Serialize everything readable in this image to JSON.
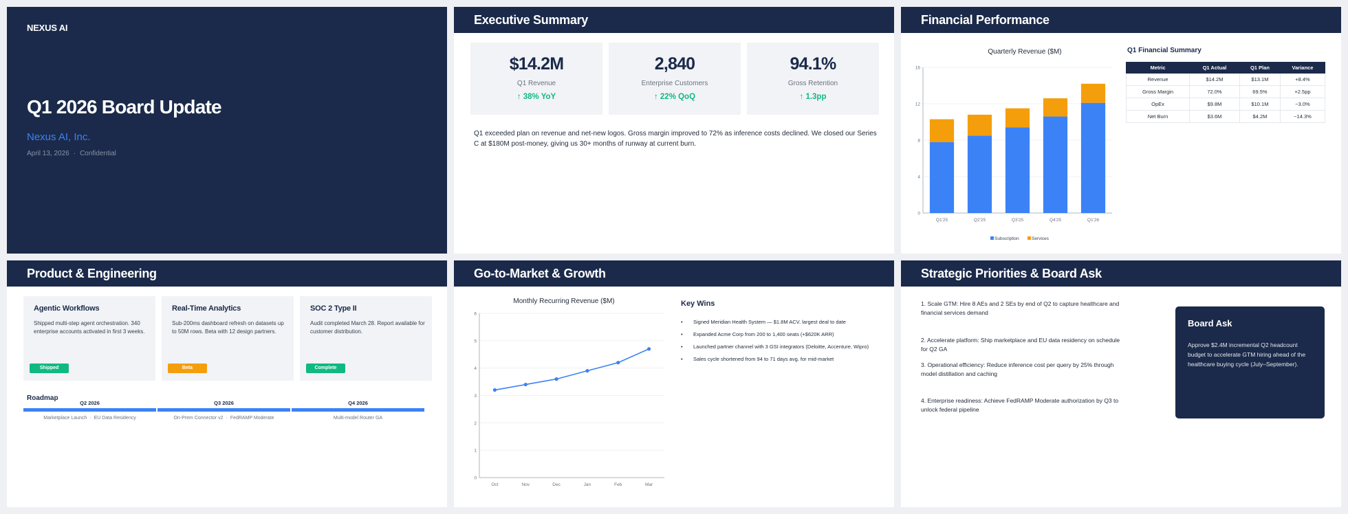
{
  "title_slide": {
    "brand": "NEXUS AI",
    "title": "Q1 2026 Board Update",
    "company": "Nexus AI, Inc.",
    "date": "April 13, 2026",
    "confidential": "Confidential"
  },
  "executive_summary": {
    "heading": "Executive Summary",
    "kpis": [
      {
        "value": "$14.2M",
        "label": "Q1 Revenue",
        "delta": "↑ 38% YoY"
      },
      {
        "value": "2,840",
        "label": "Enterprise Customers",
        "delta": "↑ 22% QoQ"
      },
      {
        "value": "94.1%",
        "label": "Gross Retention",
        "delta": "↑ 1.3pp"
      }
    ],
    "summary": "Q1 exceeded plan on revenue and net-new logos. Gross margin improved to 72% as inference costs declined. We closed our Series C at $180M post-money, giving us 30+ months of runway at current burn."
  },
  "financial": {
    "heading": "Financial Performance",
    "table_title": "Q1 Financial Summary",
    "table_headers": [
      "Metric",
      "Q1 Actual",
      "Q1 Plan",
      "Variance"
    ],
    "table_rows": [
      [
        "Revenue",
        "$14.2M",
        "$13.1M",
        "+8.4%"
      ],
      [
        "Gross Margin",
        "72.0%",
        "69.5%",
        "+2.5pp"
      ],
      [
        "OpEx",
        "$9.8M",
        "$10.1M",
        "−3.0%"
      ],
      [
        "Net Burn",
        "$3.6M",
        "$4.2M",
        "−14.3%"
      ]
    ]
  },
  "product": {
    "heading": "Product & Engineering",
    "cards": [
      {
        "title": "Agentic Workflows",
        "desc": "Shipped multi-step agent orchestration. 340 enterprise accounts activated in first 3 weeks.",
        "status": "Shipped",
        "color": "#10b981"
      },
      {
        "title": "Real-Time Analytics",
        "desc": "Sub-200ms dashboard refresh on datasets up to 50M rows. Beta with 12 design partners.",
        "status": "Beta",
        "color": "#f59e0b"
      },
      {
        "title": "SOC 2 Type II",
        "desc": "Audit completed March 28. Report available for customer distribution.",
        "status": "Complete",
        "color": "#10b981"
      }
    ],
    "roadmap_title": "Roadmap",
    "roadmap": [
      {
        "quarter": "Q2 2026",
        "items": [
          "Marketplace Launch",
          "EU Data Residency"
        ]
      },
      {
        "quarter": "Q3 2026",
        "items": [
          "On-Prem Connector v2",
          "FedRAMP Moderate"
        ]
      },
      {
        "quarter": "Q4 2026",
        "items": [
          "Multi-model Router GA"
        ]
      }
    ]
  },
  "gtm": {
    "heading": "Go-to-Market & Growth",
    "wins_title": "Key Wins",
    "wins": [
      "Signed Meridian Health System — $1.8M ACV, largest deal to date",
      "Expanded Acme Corp from 200 to 1,400 seats (+$620K ARR)",
      "Launched partner channel with 3 GSI integrators (Deloitte, Accenture, Wipro)",
      "Sales cycle shortened from 94 to 71 days avg. for mid-market"
    ]
  },
  "strategy": {
    "heading": "Strategic Priorities & Board Ask",
    "priorities": [
      "1.  Scale GTM: Hire 8 AEs and 2 SEs by end of Q2 to capture healthcare and financial services demand",
      "2.  Accelerate platform: Ship marketplace and EU data residency on schedule for Q2 GA",
      "3.  Operational efficiency: Reduce inference cost per query by 25% through model distillation and caching",
      "4.  Enterprise readiness: Achieve FedRAMP Moderate authorization by Q3 to unlock federal pipeline"
    ],
    "ask_title": "Board Ask",
    "ask_text": "Approve $2.4M incremental Q2 headcount budget to accelerate GTM hiring ahead of the healthcare buying cycle (July–September)."
  },
  "colors": {
    "navy": "#1b2a4a",
    "blue": "#3b82f6",
    "orange": "#f59e0b",
    "green": "#10b981"
  },
  "chart_data": [
    {
      "type": "bar",
      "stacked": true,
      "title": "Quarterly Revenue ($M)",
      "categories": [
        "Q1'25",
        "Q2'25",
        "Q3'25",
        "Q4'25",
        "Q1'26"
      ],
      "series": [
        {
          "name": "Subscription",
          "color": "#3b82f6",
          "values": [
            7.8,
            8.5,
            9.4,
            10.6,
            12.1
          ]
        },
        {
          "name": "Services",
          "color": "#f59e0b",
          "values": [
            2.5,
            2.3,
            2.1,
            2.0,
            2.1
          ]
        }
      ],
      "ylim": [
        0,
        16
      ],
      "yticks": [
        0,
        4,
        8,
        12,
        16
      ],
      "grid": true,
      "legend": "bottom"
    },
    {
      "type": "line",
      "title": "Monthly Recurring Revenue ($M)",
      "categories": [
        "Oct",
        "Nov",
        "Dec",
        "Jan",
        "Feb",
        "Mar"
      ],
      "series": [
        {
          "color": "#3b82f6",
          "values": [
            3.2,
            3.4,
            3.6,
            3.9,
            4.2,
            4.7
          ]
        }
      ],
      "ylim": [
        0,
        6
      ],
      "yticks": [
        0,
        1,
        2,
        3,
        4,
        5,
        6
      ],
      "grid": true
    }
  ]
}
